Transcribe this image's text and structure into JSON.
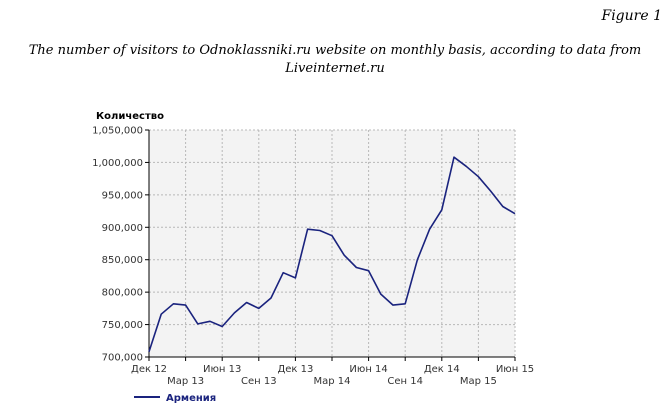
{
  "figure_label": "Figure 1",
  "caption": {
    "line1": "The number of visitors to Odnoklassniki.ru website on monthly basis, according to data from",
    "line2": "Liveinternet.ru"
  },
  "chart_data": {
    "type": "line",
    "title": "",
    "ylabel": "Количество",
    "xlabel": "",
    "ylim": [
      700000,
      1050000
    ],
    "yticks": [
      700000,
      750000,
      800000,
      850000,
      900000,
      950000,
      1000000,
      1050000
    ],
    "ytick_labels": [
      "700,000",
      "750,000",
      "800,000",
      "850,000",
      "900,000",
      "950,000",
      "1,000,000",
      "1,050,000"
    ],
    "x_labels_row1": [
      "Дек 12",
      "Июн 13",
      "Дек 13",
      "Июн 14",
      "Дек 14",
      "Июн 15"
    ],
    "x_labels_row1_index": [
      0,
      6,
      12,
      18,
      24,
      30
    ],
    "x_labels_row2": [
      "Мар 13",
      "Сен 13",
      "Мар 14",
      "Сен 14",
      "Мар 15"
    ],
    "x_labels_row2_index": [
      3,
      9,
      15,
      21,
      27
    ],
    "n_points": 31,
    "grid": true,
    "legend_position": "bottom-left",
    "series": [
      {
        "name": "Армения",
        "color": "#1a237e",
        "values": [
          708000,
          766000,
          782000,
          780000,
          751000,
          755000,
          747000,
          768000,
          784000,
          775000,
          791000,
          830000,
          822000,
          897000,
          895000,
          887000,
          857000,
          838000,
          833000,
          797000,
          780000,
          782000,
          850000,
          897000,
          927000,
          1008000,
          994000,
          978000,
          956000,
          932000,
          921000
        ]
      }
    ]
  }
}
